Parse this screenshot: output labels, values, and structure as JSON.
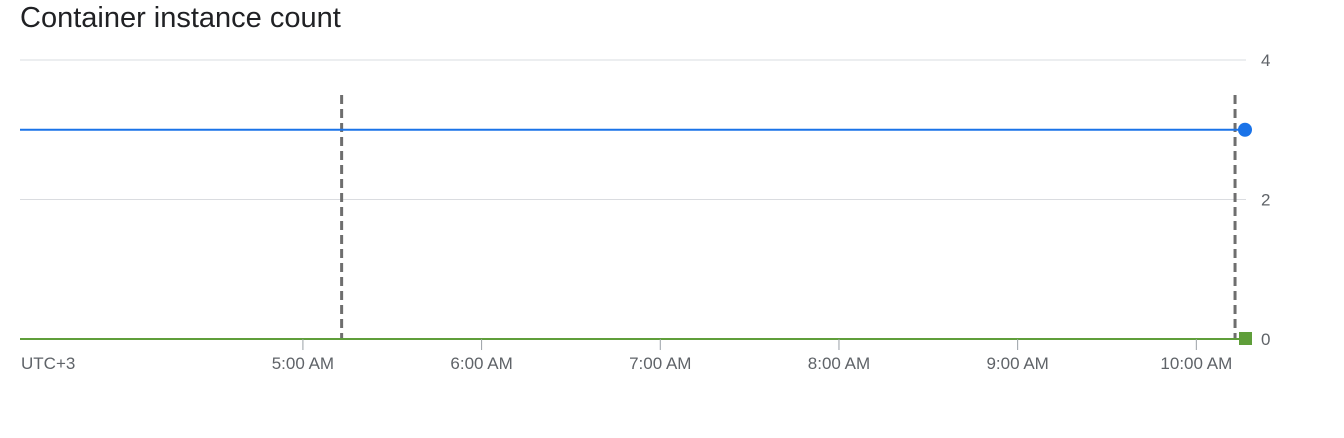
{
  "chart_data": {
    "type": "line",
    "title": "Container instance count",
    "timezone_label": "UTC+3",
    "x_ticks": [
      "5:00 AM",
      "6:00 AM",
      "7:00 AM",
      "8:00 AM",
      "9:00 AM",
      "10:00 AM"
    ],
    "y_ticks": [
      0,
      2,
      4
    ],
    "ylim": [
      0,
      4
    ],
    "xlim": [
      "03:25",
      "10:15"
    ],
    "grid": true,
    "series": [
      {
        "color": "#1a73e8",
        "marker": "circle",
        "points": [
          {
            "x": "03:25",
            "y": 3
          },
          {
            "x": "10:15",
            "y": 3
          }
        ]
      },
      {
        "color": "#5f9e3a",
        "marker": "square",
        "points": [
          {
            "x": "03:25",
            "y": 0
          },
          {
            "x": "10:15",
            "y": 0
          }
        ]
      }
    ],
    "markers": [
      {
        "x": "05:13",
        "style": "dashed"
      },
      {
        "x": "10:13",
        "style": "dashed"
      }
    ]
  }
}
